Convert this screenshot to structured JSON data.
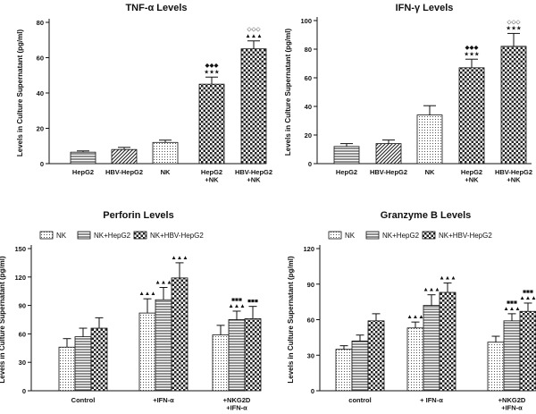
{
  "chart_data": [
    {
      "id": "tnf",
      "type": "bar",
      "title": "TNF-α Levels",
      "ylabel": "Levels in Culture Supernatant (pg/ml)",
      "ylim": [
        0,
        80
      ],
      "yticks": [
        0,
        20,
        40,
        60,
        80
      ],
      "categories": [
        "HepG2",
        "HBV-HepG2",
        "NK",
        "HepG2\n+NK",
        "HBV-HepG2\n+NK"
      ],
      "values": [
        6.5,
        8,
        12,
        45,
        65
      ],
      "errors": [
        0.7,
        1.2,
        1.3,
        4,
        4.5
      ],
      "patterns": [
        "hatch-h",
        "hatch-d",
        "dots",
        "check",
        "check"
      ],
      "annotations": [
        null,
        null,
        null,
        "◆◆◆\n★★★",
        "◇◇◇\n▲▲▲"
      ]
    },
    {
      "id": "ifn",
      "type": "bar",
      "title": "IFN-γ Levels",
      "ylabel": "Levels in Culture Supernatant (pg/ml)",
      "ylim": [
        0,
        100
      ],
      "yticks": [
        0,
        20,
        40,
        60,
        80,
        100
      ],
      "categories": [
        "HepG2",
        "HBV-HepG2",
        "NK",
        "HepG2\n+NK",
        "HBV-HepG2\n+NK"
      ],
      "values": [
        12,
        14,
        34,
        67,
        82
      ],
      "errors": [
        2,
        2.5,
        6.5,
        6,
        9
      ],
      "patterns": [
        "hatch-h",
        "hatch-d",
        "dots",
        "check",
        "check"
      ],
      "annotations": [
        null,
        null,
        null,
        "◆◆◆\n★★★",
        "◇◇◇\n★★★"
      ]
    },
    {
      "id": "perforin",
      "type": "bar",
      "title": "Perforin Levels",
      "ylabel": "Levels in Culture Supernatant (pg/ml)",
      "ylim": [
        0,
        150
      ],
      "yticks": [
        0,
        30,
        60,
        90,
        120,
        150
      ],
      "categories": [
        "Control",
        "+IFN-α",
        "+NKG2D\n+IFN-α"
      ],
      "series": [
        {
          "name": "NK",
          "values": [
            46,
            82,
            59
          ],
          "errors": [
            9,
            15,
            10
          ],
          "pattern": "dots"
        },
        {
          "name": "NK+HepG2",
          "values": [
            57,
            96,
            75
          ],
          "errors": [
            9,
            13,
            9
          ],
          "pattern": "hatch-h"
        },
        {
          "name": "NK+HBV-HepG2",
          "values": [
            66,
            119,
            76
          ],
          "errors": [
            11,
            16,
            13
          ],
          "pattern": "check"
        }
      ],
      "annotations": [
        [
          null,
          null,
          null
        ],
        [
          "▲▲▲",
          "▲▲▲",
          "▲▲▲"
        ],
        [
          null,
          "■■■\n▲▲▲",
          "■■■"
        ]
      ]
    },
    {
      "id": "granzyme",
      "type": "bar",
      "title": "Granzyme B Levels",
      "ylabel": "Levels in Culture Supernatant (pg/ml)",
      "ylim": [
        0,
        120
      ],
      "yticks": [
        0,
        30,
        60,
        90,
        120
      ],
      "categories": [
        "control",
        "+ IFN-α",
        "+NKG2D\n+IFN-α"
      ],
      "series": [
        {
          "name": "NK",
          "values": [
            35,
            53,
            41
          ],
          "errors": [
            3,
            5,
            5
          ],
          "pattern": "dots"
        },
        {
          "name": "NK+HepG2",
          "values": [
            42,
            72,
            59
          ],
          "errors": [
            5,
            9,
            6
          ],
          "pattern": "hatch-h"
        },
        {
          "name": "NK+HBV-HepG2",
          "values": [
            59,
            83,
            67
          ],
          "errors": [
            6,
            8,
            7
          ],
          "pattern": "check"
        }
      ],
      "annotations": [
        [
          null,
          null,
          null
        ],
        [
          "▲▲▲",
          "▲▲▲",
          "▲▲▲"
        ],
        [
          null,
          "■■■\n▲▲▲",
          "■■■\n▲▲▲"
        ]
      ]
    }
  ]
}
